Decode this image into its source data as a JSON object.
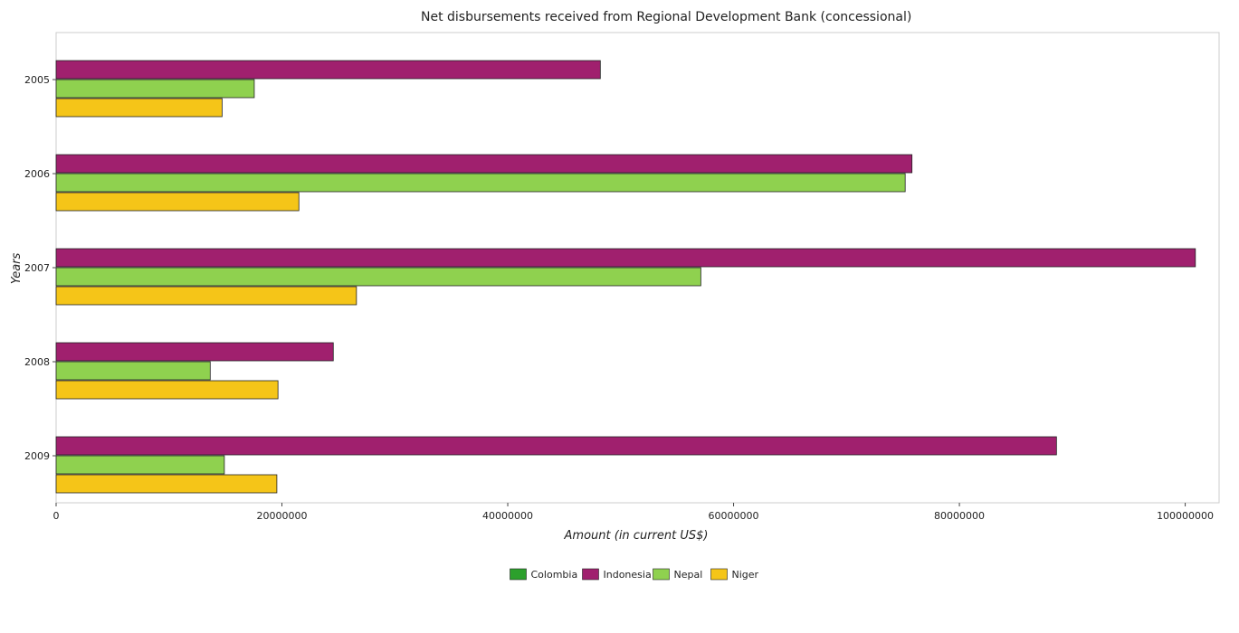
{
  "chart_data": {
    "type": "bar",
    "orientation": "horizontal",
    "title": "Net disbursements received from Regional Development Bank (concessional)",
    "xlabel": "Amount (in current US$)",
    "ylabel": "Years",
    "categories": [
      "2005",
      "2006",
      "2007",
      "2008",
      "2009"
    ],
    "xlim": [
      0,
      103000000
    ],
    "xticks": [
      0,
      20000000,
      40000000,
      60000000,
      80000000,
      100000000
    ],
    "xtick_labels": [
      "0",
      "20000000",
      "40000000",
      "60000000",
      "80000000",
      "100000000"
    ],
    "legend_position": "bottom-center",
    "grid": false,
    "series": [
      {
        "name": "Colombia",
        "color": "#2ca02c",
        "values": [
          0,
          0,
          0,
          0,
          0
        ]
      },
      {
        "name": "Indonesia",
        "color": "#a0206e",
        "values": [
          48200000,
          75800000,
          100900000,
          24550000,
          88600000
        ]
      },
      {
        "name": "Nepal",
        "color": "#8fd14f",
        "values": [
          17550000,
          75200000,
          57100000,
          13650000,
          14900000
        ]
      },
      {
        "name": "Niger",
        "color": "#f5c518",
        "values": [
          14700000,
          21500000,
          26600000,
          19650000,
          19550000
        ]
      }
    ]
  }
}
